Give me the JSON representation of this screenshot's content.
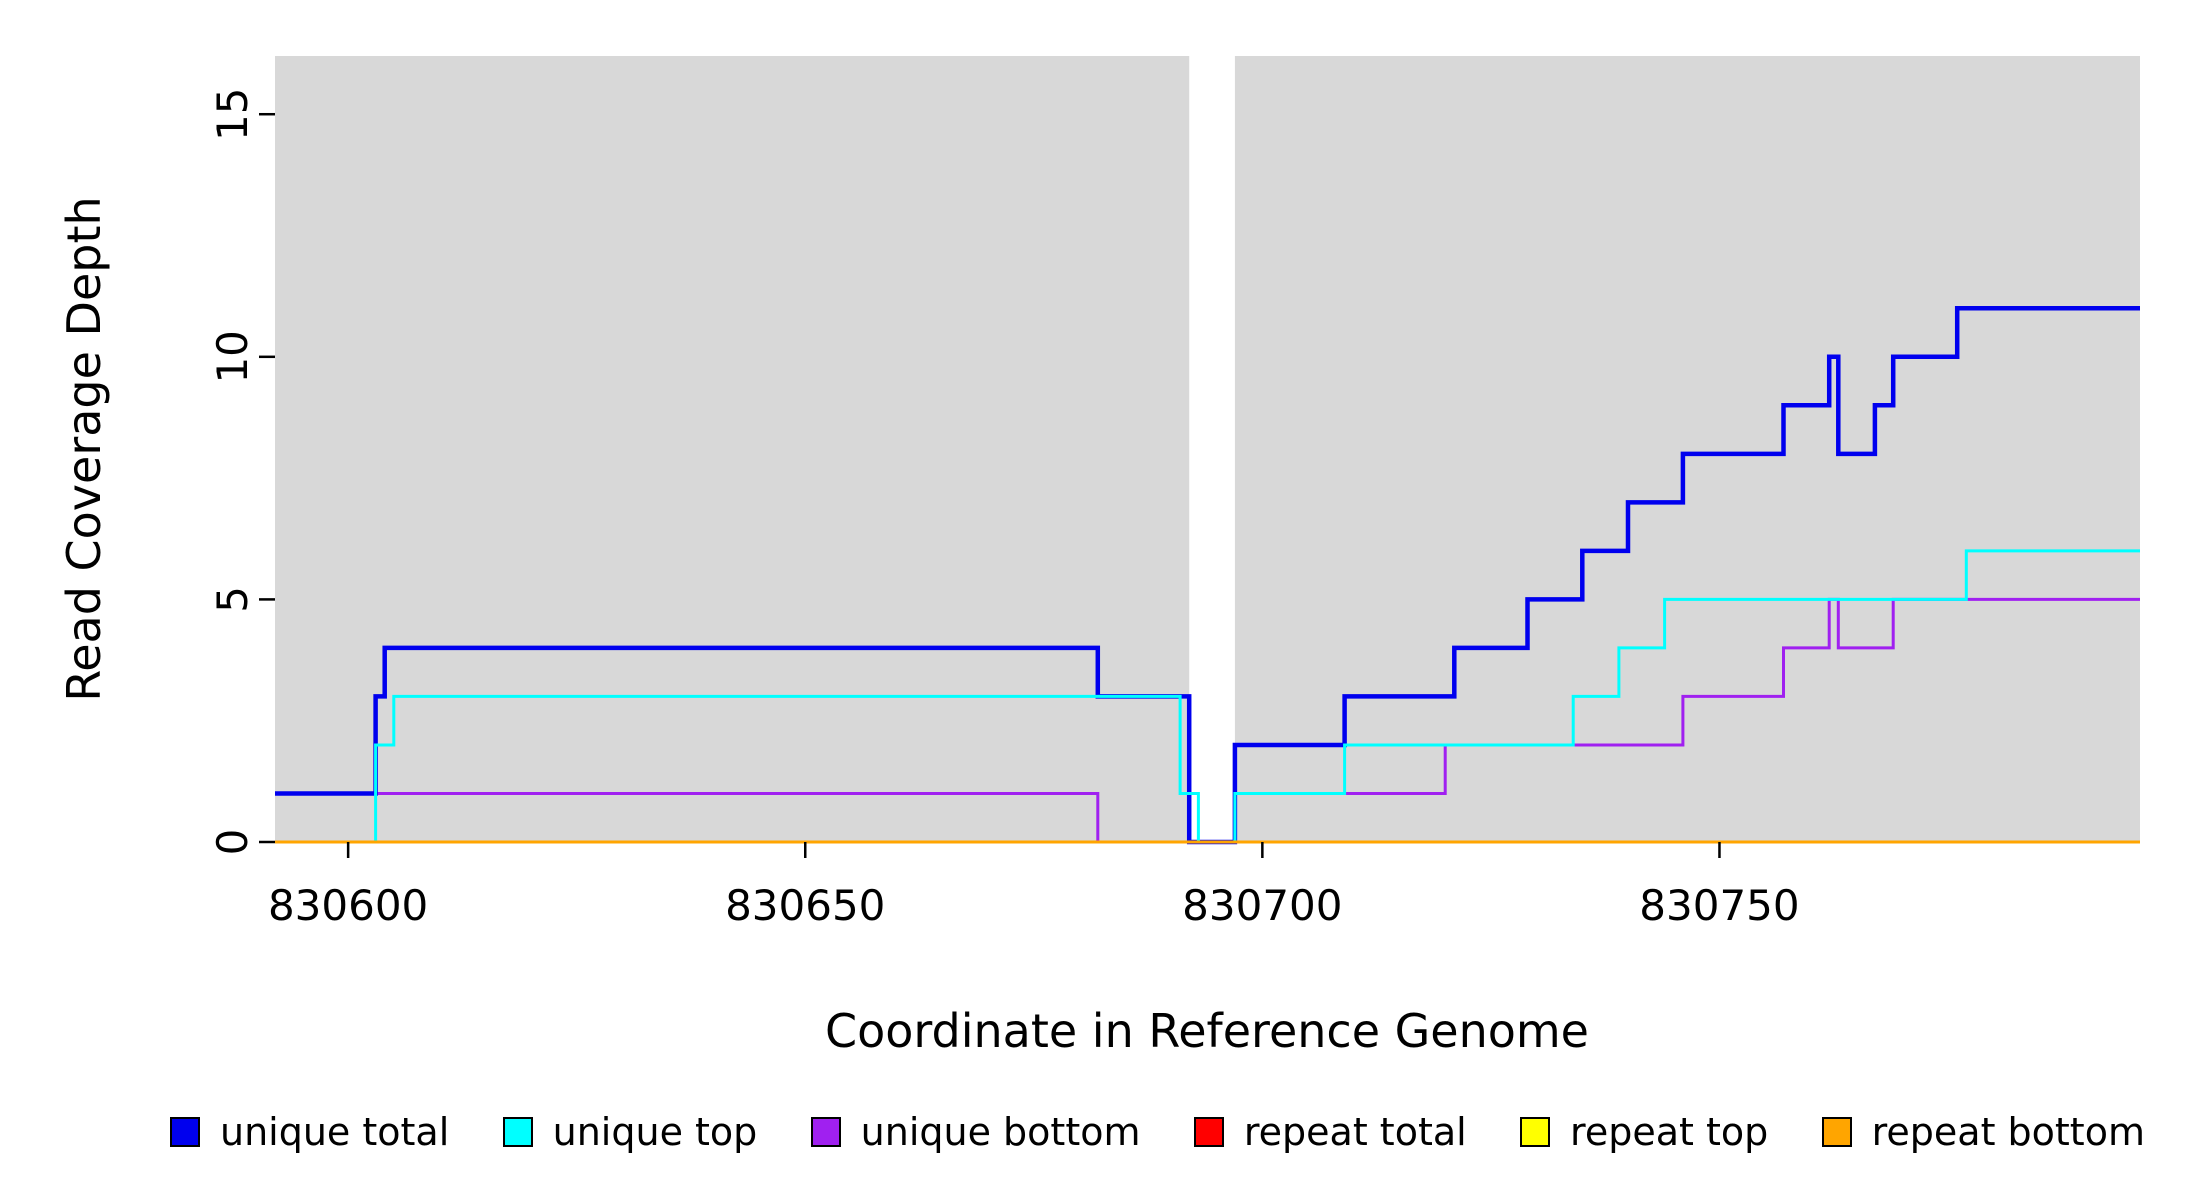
{
  "chart_data": {
    "type": "line",
    "subtype": "step-coverage-plot",
    "title": "",
    "xlabel": "Coordinate in Reference Genome",
    "ylabel": "Read Coverage Depth",
    "xlim": [
      830592,
      830796
    ],
    "ylim": [
      0,
      16.2
    ],
    "x_ticks": [
      830600,
      830650,
      830700,
      830750
    ],
    "y_ticks": [
      0,
      5,
      10,
      15
    ],
    "grid": false,
    "background": {
      "color": "#d8d8d8",
      "regions": [
        [
          830592,
          830692
        ],
        [
          830697,
          830796
        ]
      ]
    },
    "draw_order": [
      "unique bottom",
      "unique total",
      "unique top",
      "repeat total",
      "repeat top",
      "repeat bottom"
    ],
    "series": [
      {
        "name": "unique total",
        "color": "#0000ee",
        "width": 4.5,
        "steps": [
          [
            830592,
            1
          ],
          [
            830603,
            3
          ],
          [
            830604,
            4
          ],
          [
            830682,
            3
          ],
          [
            830692,
            0
          ],
          [
            830697,
            2
          ],
          [
            830709,
            3
          ],
          [
            830721,
            4
          ],
          [
            830729,
            5
          ],
          [
            830735,
            6
          ],
          [
            830740,
            7
          ],
          [
            830746,
            8
          ],
          [
            830757,
            9
          ],
          [
            830762,
            10
          ],
          [
            830763,
            8
          ],
          [
            830767,
            9
          ],
          [
            830769,
            10
          ],
          [
            830776,
            11
          ],
          [
            830796,
            11
          ]
        ]
      },
      {
        "name": "unique top",
        "color": "#00ffff",
        "width": 3,
        "steps": [
          [
            830592,
            0
          ],
          [
            830603,
            2
          ],
          [
            830605,
            3
          ],
          [
            830691,
            1
          ],
          [
            830693,
            0
          ],
          [
            830697,
            1
          ],
          [
            830709,
            2
          ],
          [
            830734,
            3
          ],
          [
            830739,
            4
          ],
          [
            830744,
            5
          ],
          [
            830777,
            6
          ],
          [
            830796,
            6
          ]
        ]
      },
      {
        "name": "unique bottom",
        "color": "#a020f0",
        "width": 3,
        "steps": [
          [
            830592,
            1
          ],
          [
            830682,
            0
          ],
          [
            830697,
            1
          ],
          [
            830720,
            2
          ],
          [
            830746,
            3
          ],
          [
            830757,
            4
          ],
          [
            830762,
            5
          ],
          [
            830763,
            4
          ],
          [
            830769,
            5
          ],
          [
            830796,
            5
          ]
        ]
      },
      {
        "name": "repeat total",
        "color": "#ff0000",
        "width": 3,
        "steps": [
          [
            830592,
            0
          ],
          [
            830796,
            0
          ]
        ]
      },
      {
        "name": "repeat top",
        "color": "#ffff00",
        "width": 3,
        "steps": [
          [
            830592,
            0
          ],
          [
            830796,
            0
          ]
        ]
      },
      {
        "name": "repeat bottom",
        "color": "#ffa500",
        "width": 3,
        "steps": [
          [
            830592,
            0
          ],
          [
            830796,
            0
          ]
        ]
      }
    ],
    "legend": {
      "position": "bottom",
      "entries": [
        {
          "label": "unique total",
          "color": "#0000ee"
        },
        {
          "label": "unique top",
          "color": "#00ffff"
        },
        {
          "label": "unique bottom",
          "color": "#a020f0"
        },
        {
          "label": "repeat total",
          "color": "#ff0000"
        },
        {
          "label": "repeat top",
          "color": "#ffff00"
        },
        {
          "label": "repeat bottom",
          "color": "#ffa500"
        }
      ]
    }
  }
}
